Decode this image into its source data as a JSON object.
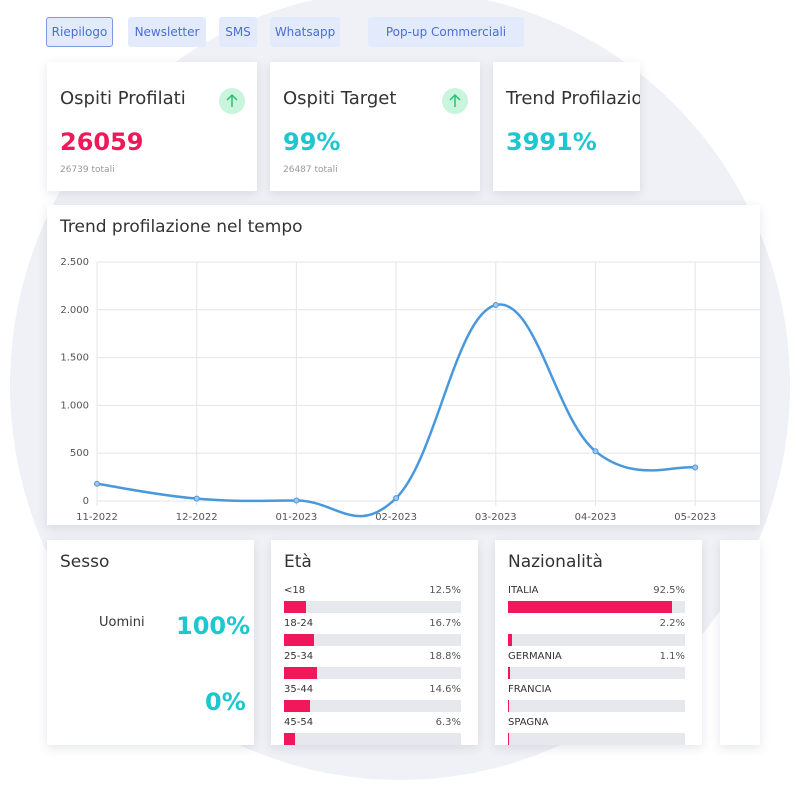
{
  "tabs": [
    "Riepilogo",
    "Newsletter",
    "SMS",
    "Whatsapp",
    "Pop-up Commerciali"
  ],
  "kpis": [
    {
      "title": "Ospiti Profilati",
      "value": "26059",
      "subtitle": "26739 totali"
    },
    {
      "title": "Ospiti Target",
      "value": "99%",
      "subtitle": "26487 totali"
    },
    {
      "title": "Trend Profilazio",
      "value": "3991%"
    }
  ],
  "chart_data": {
    "type": "line",
    "title": "Trend profilazione nel tempo",
    "categories": [
      "11-2022",
      "12-2022",
      "01-2023",
      "02-2023",
      "03-2023",
      "04-2023",
      "05-2023"
    ],
    "values": [
      180,
      25,
      5,
      30,
      2050,
      520,
      350
    ],
    "color": "#4a98dc",
    "ylim": [
      0,
      2500
    ],
    "yticks": [
      0,
      500,
      {
        "value": 1000,
        "label": "1.000"
      },
      {
        "value": 1500,
        "label": "1.500"
      },
      {
        "value": 2000,
        "label": "2.000"
      },
      {
        "value": 2500,
        "label": "2.500"
      }
    ],
    "grid": true
  },
  "sesso": {
    "title": "Sesso",
    "rows": [
      {
        "label": "Uomini",
        "value": "100%"
      },
      {
        "value": "0%"
      }
    ]
  },
  "eta": {
    "title": "Età",
    "categories": [
      "<18",
      "18-24",
      "25-34",
      "35-44",
      "45-54"
    ],
    "values": [
      12.5,
      16.7,
      18.8,
      14.6,
      6.3
    ],
    "value_labels": [
      "12.5%",
      "16.7%",
      "18.8%",
      "14.6%",
      "6.3%"
    ],
    "xlim": [
      0,
      100
    ],
    "color": "#f0185a"
  },
  "nazionalita": {
    "title": "Nazionalità",
    "categories": [
      "ITALIA",
      null,
      "GERMANIA",
      "FRANCIA",
      "SPAGNA"
    ],
    "values": [
      92.5,
      2.2,
      1.1,
      0.8,
      0.6
    ],
    "value_labels": [
      "92.5%",
      "2.2%",
      "1.1%",
      null,
      null
    ],
    "xlim": [
      0,
      100
    ],
    "color": "#f0185a"
  }
}
